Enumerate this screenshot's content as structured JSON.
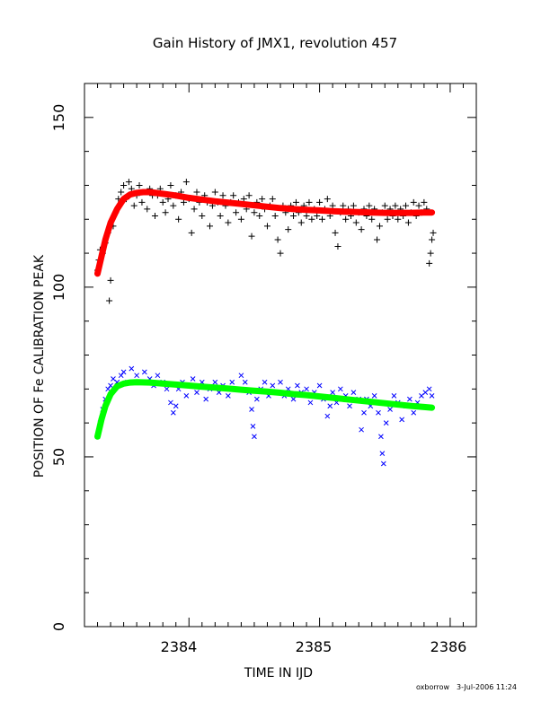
{
  "chart_data": {
    "type": "scatter",
    "title": "Gain History of JMX1, revolution 457",
    "xlabel": "TIME IN IJD",
    "ylabel": "POSITION OF Fe CALIBRATION PEAK",
    "xlim": [
      2383.2,
      2386.2
    ],
    "ylim": [
      0,
      160
    ],
    "x_ticks": [
      "2384",
      "2385",
      "2386"
    ],
    "y_ticks": [
      "0",
      "50",
      "100",
      "150"
    ],
    "grid": false,
    "legend": "none",
    "series": [
      {
        "marker": "plus",
        "color": "#000000",
        "points": [
          [
            2383.3,
            105
          ],
          [
            2383.31,
            108
          ],
          [
            2383.32,
            111
          ],
          [
            2383.34,
            110
          ],
          [
            2383.36,
            113
          ],
          [
            2383.38,
            116
          ],
          [
            2383.39,
            96
          ],
          [
            2383.4,
            102
          ],
          [
            2383.42,
            118
          ],
          [
            2383.44,
            122
          ],
          [
            2383.46,
            126
          ],
          [
            2383.48,
            128
          ],
          [
            2383.5,
            130
          ],
          [
            2383.52,
            126
          ],
          [
            2383.54,
            131
          ],
          [
            2383.56,
            129
          ],
          [
            2383.58,
            124
          ],
          [
            2383.6,
            127
          ],
          [
            2383.62,
            130
          ],
          [
            2383.64,
            125
          ],
          [
            2383.66,
            128
          ],
          [
            2383.68,
            123
          ],
          [
            2383.7,
            129
          ],
          [
            2383.72,
            127
          ],
          [
            2383.74,
            121
          ],
          [
            2383.76,
            127
          ],
          [
            2383.78,
            129
          ],
          [
            2383.8,
            125
          ],
          [
            2383.82,
            122
          ],
          [
            2383.84,
            126
          ],
          [
            2383.86,
            130
          ],
          [
            2383.88,
            124
          ],
          [
            2383.9,
            127
          ],
          [
            2383.92,
            120
          ],
          [
            2383.94,
            128
          ],
          [
            2383.96,
            125
          ],
          [
            2383.98,
            131
          ],
          [
            2384.0,
            126
          ],
          [
            2384.02,
            116
          ],
          [
            2384.04,
            123
          ],
          [
            2384.06,
            128
          ],
          [
            2384.08,
            125
          ],
          [
            2384.1,
            121
          ],
          [
            2384.12,
            127
          ],
          [
            2384.14,
            125
          ],
          [
            2384.16,
            118
          ],
          [
            2384.18,
            124
          ],
          [
            2384.2,
            128
          ],
          [
            2384.22,
            125
          ],
          [
            2384.24,
            121
          ],
          [
            2384.26,
            127
          ],
          [
            2384.28,
            124
          ],
          [
            2384.3,
            119
          ],
          [
            2384.32,
            125
          ],
          [
            2384.34,
            127
          ],
          [
            2384.36,
            122
          ],
          [
            2384.38,
            125
          ],
          [
            2384.4,
            120
          ],
          [
            2384.42,
            126
          ],
          [
            2384.44,
            123
          ],
          [
            2384.46,
            127
          ],
          [
            2384.48,
            115
          ],
          [
            2384.5,
            122
          ],
          [
            2384.52,
            125
          ],
          [
            2384.54,
            121
          ],
          [
            2384.56,
            126
          ],
          [
            2384.58,
            123
          ],
          [
            2384.6,
            118
          ],
          [
            2384.62,
            124
          ],
          [
            2384.64,
            126
          ],
          [
            2384.66,
            121
          ],
          [
            2384.68,
            114
          ],
          [
            2384.7,
            110
          ],
          [
            2384.72,
            124
          ],
          [
            2384.74,
            122
          ],
          [
            2384.76,
            117
          ],
          [
            2384.78,
            124
          ],
          [
            2384.8,
            121
          ],
          [
            2384.82,
            125
          ],
          [
            2384.84,
            122
          ],
          [
            2384.86,
            119
          ],
          [
            2384.88,
            124
          ],
          [
            2384.9,
            121
          ],
          [
            2384.92,
            125
          ],
          [
            2384.94,
            120
          ],
          [
            2384.96,
            123
          ],
          [
            2384.98,
            121
          ],
          [
            2385.0,
            125
          ],
          [
            2385.02,
            120
          ],
          [
            2385.04,
            123
          ],
          [
            2385.06,
            126
          ],
          [
            2385.08,
            121
          ],
          [
            2385.1,
            124
          ],
          [
            2385.12,
            116
          ],
          [
            2385.14,
            112
          ],
          [
            2385.16,
            122
          ],
          [
            2385.18,
            124
          ],
          [
            2385.2,
            120
          ],
          [
            2385.22,
            123
          ],
          [
            2385.24,
            121
          ],
          [
            2385.26,
            124
          ],
          [
            2385.28,
            119
          ],
          [
            2385.3,
            122
          ],
          [
            2385.32,
            117
          ],
          [
            2385.34,
            123
          ],
          [
            2385.36,
            121
          ],
          [
            2385.38,
            124
          ],
          [
            2385.4,
            120
          ],
          [
            2385.42,
            123
          ],
          [
            2385.44,
            114
          ],
          [
            2385.46,
            118
          ],
          [
            2385.48,
            122
          ],
          [
            2385.5,
            124
          ],
          [
            2385.52,
            120
          ],
          [
            2385.54,
            123
          ],
          [
            2385.56,
            121
          ],
          [
            2385.58,
            124
          ],
          [
            2385.6,
            120
          ],
          [
            2385.62,
            123
          ],
          [
            2385.64,
            121
          ],
          [
            2385.66,
            124
          ],
          [
            2385.68,
            119
          ],
          [
            2385.7,
            122
          ],
          [
            2385.72,
            125
          ],
          [
            2385.74,
            121
          ],
          [
            2385.76,
            124
          ],
          [
            2385.78,
            122
          ],
          [
            2385.8,
            125
          ],
          [
            2385.82,
            123
          ],
          [
            2385.84,
            107
          ],
          [
            2385.85,
            110
          ],
          [
            2385.86,
            114
          ],
          [
            2385.87,
            116
          ]
        ]
      },
      {
        "marker": "line",
        "color": "#ff0000",
        "points": [
          [
            2383.3,
            104
          ],
          [
            2383.33,
            109
          ],
          [
            2383.36,
            114
          ],
          [
            2383.4,
            119
          ],
          [
            2383.45,
            123
          ],
          [
            2383.5,
            126
          ],
          [
            2383.55,
            127.3
          ],
          [
            2383.6,
            127.8
          ],
          [
            2383.65,
            128
          ],
          [
            2383.7,
            128
          ],
          [
            2383.8,
            127.5
          ],
          [
            2383.9,
            127
          ],
          [
            2384.0,
            126.3
          ],
          [
            2384.1,
            125.8
          ],
          [
            2384.2,
            125.3
          ],
          [
            2384.3,
            124.9
          ],
          [
            2384.4,
            124.5
          ],
          [
            2384.5,
            124.1
          ],
          [
            2384.6,
            123.7
          ],
          [
            2384.7,
            123.3
          ],
          [
            2384.8,
            123
          ],
          [
            2384.9,
            122.8
          ],
          [
            2385.0,
            122.6
          ],
          [
            2385.1,
            122.4
          ],
          [
            2385.2,
            122.2
          ],
          [
            2385.3,
            122.1
          ],
          [
            2385.4,
            122
          ],
          [
            2385.5,
            121.9
          ],
          [
            2385.6,
            121.9
          ],
          [
            2385.7,
            121.9
          ],
          [
            2385.8,
            122
          ],
          [
            2385.86,
            122
          ]
        ]
      },
      {
        "marker": "cross",
        "color": "#0000ff",
        "points": [
          [
            2383.3,
            56
          ],
          [
            2383.32,
            60
          ],
          [
            2383.34,
            64
          ],
          [
            2383.36,
            67
          ],
          [
            2383.38,
            70
          ],
          [
            2383.4,
            71
          ],
          [
            2383.42,
            73
          ],
          [
            2383.45,
            72
          ],
          [
            2383.48,
            74
          ],
          [
            2383.5,
            75
          ],
          [
            2383.53,
            72
          ],
          [
            2383.56,
            76
          ],
          [
            2383.6,
            74
          ],
          [
            2383.63,
            72
          ],
          [
            2383.66,
            75
          ],
          [
            2383.7,
            73
          ],
          [
            2383.73,
            71
          ],
          [
            2383.76,
            74
          ],
          [
            2383.8,
            72
          ],
          [
            2383.83,
            70
          ],
          [
            2383.86,
            66
          ],
          [
            2383.88,
            63
          ],
          [
            2383.9,
            65
          ],
          [
            2383.92,
            70
          ],
          [
            2383.95,
            72
          ],
          [
            2383.98,
            68
          ],
          [
            2384.0,
            71
          ],
          [
            2384.03,
            73
          ],
          [
            2384.06,
            69
          ],
          [
            2384.1,
            72
          ],
          [
            2384.13,
            67
          ],
          [
            2384.16,
            70
          ],
          [
            2384.2,
            72
          ],
          [
            2384.23,
            69
          ],
          [
            2384.26,
            71
          ],
          [
            2384.3,
            68
          ],
          [
            2384.33,
            72
          ],
          [
            2384.36,
            70
          ],
          [
            2384.4,
            74
          ],
          [
            2384.43,
            72
          ],
          [
            2384.46,
            69
          ],
          [
            2384.48,
            64
          ],
          [
            2384.49,
            59
          ],
          [
            2384.5,
            56
          ],
          [
            2384.52,
            67
          ],
          [
            2384.55,
            70
          ],
          [
            2384.58,
            72
          ],
          [
            2384.61,
            68
          ],
          [
            2384.64,
            71
          ],
          [
            2384.67,
            69
          ],
          [
            2384.7,
            72
          ],
          [
            2384.73,
            68
          ],
          [
            2384.76,
            70
          ],
          [
            2384.8,
            67
          ],
          [
            2384.83,
            71
          ],
          [
            2384.86,
            69
          ],
          [
            2384.9,
            70
          ],
          [
            2384.93,
            66
          ],
          [
            2384.96,
            69
          ],
          [
            2385.0,
            71
          ],
          [
            2385.03,
            67
          ],
          [
            2385.06,
            62
          ],
          [
            2385.08,
            65
          ],
          [
            2385.1,
            69
          ],
          [
            2385.13,
            66
          ],
          [
            2385.16,
            70
          ],
          [
            2385.2,
            68
          ],
          [
            2385.23,
            65
          ],
          [
            2385.26,
            69
          ],
          [
            2385.3,
            67
          ],
          [
            2385.32,
            58
          ],
          [
            2385.34,
            63
          ],
          [
            2385.36,
            67
          ],
          [
            2385.39,
            65
          ],
          [
            2385.42,
            68
          ],
          [
            2385.45,
            63
          ],
          [
            2385.47,
            56
          ],
          [
            2385.48,
            51
          ],
          [
            2385.49,
            48
          ],
          [
            2385.51,
            60
          ],
          [
            2385.54,
            64
          ],
          [
            2385.57,
            68
          ],
          [
            2385.6,
            66
          ],
          [
            2385.63,
            61
          ],
          [
            2385.66,
            65
          ],
          [
            2385.69,
            67
          ],
          [
            2385.72,
            63
          ],
          [
            2385.75,
            66
          ],
          [
            2385.78,
            68
          ],
          [
            2385.81,
            69
          ],
          [
            2385.84,
            70
          ],
          [
            2385.86,
            68
          ]
        ]
      },
      {
        "marker": "line",
        "color": "#00ff00",
        "points": [
          [
            2383.3,
            56
          ],
          [
            2383.33,
            61
          ],
          [
            2383.36,
            65
          ],
          [
            2383.4,
            68.5
          ],
          [
            2383.45,
            70.8
          ],
          [
            2383.5,
            71.6
          ],
          [
            2383.55,
            71.9
          ],
          [
            2383.6,
            72
          ],
          [
            2383.7,
            71.9
          ],
          [
            2383.8,
            71.6
          ],
          [
            2383.9,
            71.3
          ],
          [
            2384.0,
            71
          ],
          [
            2384.1,
            70.7
          ],
          [
            2384.2,
            70.4
          ],
          [
            2384.3,
            70.1
          ],
          [
            2384.4,
            69.8
          ],
          [
            2384.5,
            69.5
          ],
          [
            2384.6,
            69.2
          ],
          [
            2384.7,
            68.9
          ],
          [
            2384.8,
            68.5
          ],
          [
            2384.9,
            68.2
          ],
          [
            2385.0,
            67.8
          ],
          [
            2385.1,
            67.4
          ],
          [
            2385.2,
            67
          ],
          [
            2385.3,
            66.6
          ],
          [
            2385.4,
            66.2
          ],
          [
            2385.5,
            65.8
          ],
          [
            2385.6,
            65.4
          ],
          [
            2385.7,
            65
          ],
          [
            2385.8,
            64.7
          ],
          [
            2385.86,
            64.5
          ]
        ]
      }
    ]
  },
  "footer": {
    "user": "oxborrow",
    "date": "3-Jul-2006 11:24"
  }
}
